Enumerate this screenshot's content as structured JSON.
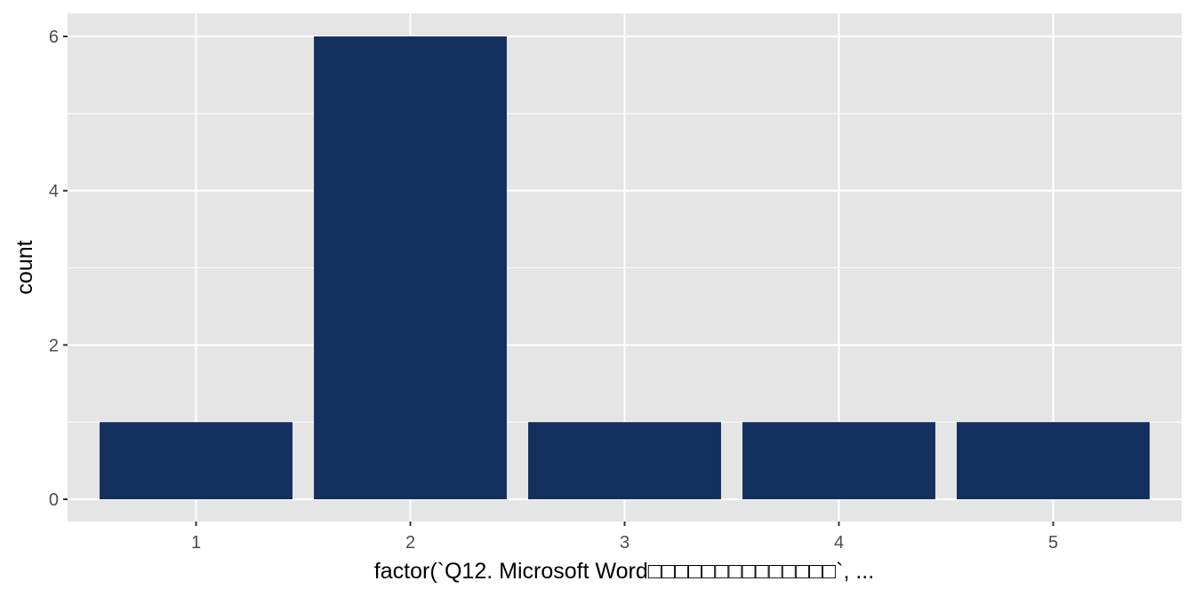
{
  "chart_data": {
    "type": "bar",
    "categories": [
      "1",
      "2",
      "3",
      "4",
      "5"
    ],
    "values": [
      1,
      6,
      1,
      1,
      1
    ],
    "title": "",
    "xlabel": "factor(`Q12. Microsoft Word□□□□□□□□□□□□□□`, ...",
    "ylabel": "count",
    "ylim": [
      0,
      6.25
    ],
    "yticks": [
      0,
      2,
      4,
      6
    ],
    "grid": true,
    "legend": "none",
    "colors": {
      "bar": "#13305f",
      "panel": "#e5e5e5",
      "grid": "#ffffff",
      "tick_text": "#4d4d4d"
    }
  }
}
